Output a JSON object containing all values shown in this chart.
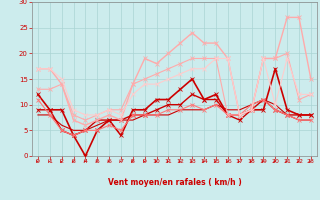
{
  "xlabel": "Vent moyen/en rafales ( km/h )",
  "xlim": [
    -0.5,
    23.5
  ],
  "ylim": [
    0,
    30
  ],
  "xticks": [
    0,
    1,
    2,
    3,
    4,
    5,
    6,
    7,
    8,
    9,
    10,
    11,
    12,
    13,
    14,
    15,
    16,
    17,
    18,
    19,
    20,
    21,
    22,
    23
  ],
  "yticks": [
    0,
    5,
    10,
    15,
    20,
    25,
    30
  ],
  "bg_color": "#cceced",
  "grid_color": "#aad4d4",
  "series": [
    {
      "x": [
        0,
        1,
        2,
        3,
        4,
        5,
        6,
        7,
        8,
        9,
        10,
        11,
        12,
        13,
        14,
        15,
        16,
        17,
        18,
        19,
        20,
        21,
        22,
        23
      ],
      "y": [
        12,
        9,
        9,
        4,
        0,
        5,
        7,
        4,
        9,
        9,
        11,
        11,
        13,
        15,
        11,
        12,
        8,
        8,
        9,
        9,
        17,
        9,
        8,
        8
      ],
      "color": "#cc0000",
      "lw": 1.2,
      "marker": "x",
      "ms": 2.5
    },
    {
      "x": [
        0,
        1,
        2,
        3,
        4,
        5,
        6,
        7,
        8,
        9,
        10,
        11,
        12,
        13,
        14,
        15,
        16,
        17,
        18,
        19,
        20,
        21,
        22,
        23
      ],
      "y": [
        9,
        9,
        5,
        4,
        5,
        7,
        7,
        7,
        8,
        8,
        9,
        10,
        10,
        12,
        11,
        11,
        8,
        7,
        9,
        11,
        9,
        8,
        8,
        8
      ],
      "color": "#cc0000",
      "lw": 1.0,
      "marker": "x",
      "ms": 2.5
    },
    {
      "x": [
        0,
        1,
        2,
        3,
        4,
        5,
        6,
        7,
        8,
        9,
        10,
        11,
        12,
        13,
        14,
        15,
        16,
        17,
        18,
        19,
        20,
        21,
        22,
        23
      ],
      "y": [
        8,
        8,
        6,
        5,
        5,
        6,
        7,
        7,
        7,
        8,
        8,
        8,
        9,
        9,
        9,
        10,
        9,
        9,
        10,
        11,
        10,
        8,
        7,
        7
      ],
      "color": "#cc0000",
      "lw": 0.8,
      "marker": null,
      "ms": 0
    },
    {
      "x": [
        0,
        1,
        2,
        3,
        4,
        5,
        6,
        7,
        8,
        9,
        10,
        11,
        12,
        13,
        14,
        15,
        16,
        17,
        18,
        19,
        20,
        21,
        22,
        23
      ],
      "y": [
        11,
        8,
        5,
        4,
        5,
        5,
        6,
        5,
        8,
        8,
        8,
        9,
        9,
        10,
        9,
        10,
        8,
        8,
        10,
        11,
        9,
        8,
        7,
        7
      ],
      "color": "#ff7777",
      "lw": 0.8,
      "marker": "x",
      "ms": 2.5
    },
    {
      "x": [
        0,
        1,
        2,
        3,
        4,
        5,
        6,
        7,
        8,
        9,
        10,
        11,
        12,
        13,
        14,
        15,
        16,
        17,
        18,
        19,
        20,
        21,
        22,
        23
      ],
      "y": [
        17,
        17,
        14,
        7,
        6,
        7,
        8,
        7,
        14,
        19,
        18,
        20,
        22,
        24,
        22,
        22,
        19,
        8,
        9,
        19,
        19,
        27,
        27,
        15
      ],
      "color": "#ffaaaa",
      "lw": 1.0,
      "marker": "x",
      "ms": 2.5
    },
    {
      "x": [
        0,
        1,
        2,
        3,
        4,
        5,
        6,
        7,
        8,
        9,
        10,
        11,
        12,
        13,
        14,
        15,
        16,
        17,
        18,
        19,
        20,
        21,
        22,
        23
      ],
      "y": [
        13,
        13,
        14,
        8,
        7,
        8,
        9,
        9,
        14,
        15,
        16,
        17,
        18,
        19,
        19,
        19,
        8,
        8,
        9,
        19,
        19,
        20,
        11,
        12
      ],
      "color": "#ffaaaa",
      "lw": 0.8,
      "marker": "x",
      "ms": 2.5
    },
    {
      "x": [
        0,
        1,
        2,
        3,
        4,
        5,
        6,
        7,
        8,
        9,
        10,
        11,
        12,
        13,
        14,
        15,
        16,
        17,
        18,
        19,
        20,
        21,
        22,
        23
      ],
      "y": [
        17,
        17,
        15,
        9,
        8,
        8,
        9,
        8,
        12,
        14,
        14,
        15,
        16,
        17,
        17,
        19,
        19,
        8,
        9,
        19,
        10,
        19,
        12,
        12
      ],
      "color": "#ffcccc",
      "lw": 0.8,
      "marker": "x",
      "ms": 2.5
    }
  ]
}
